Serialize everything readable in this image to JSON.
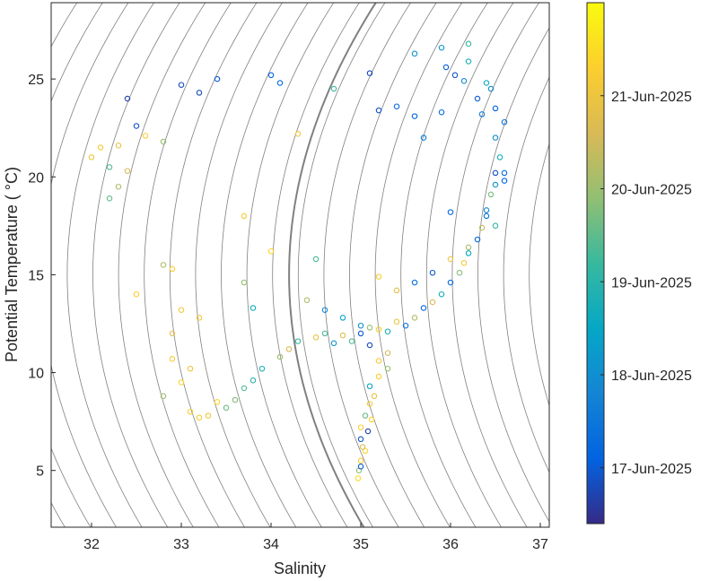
{
  "chart_data": {
    "type": "scatter",
    "xlabel": "Salinity",
    "ylabel": "Potential Temperature ( °C)",
    "xlim": [
      31.55,
      37.1
    ],
    "ylim": [
      2.1,
      28.9
    ],
    "x_ticks": [
      32,
      33,
      34,
      35,
      36,
      37
    ],
    "x_tick_labels": [
      "32",
      "33",
      "34",
      "35",
      "36",
      "37"
    ],
    "y_ticks": [
      5,
      10,
      15,
      20,
      25
    ],
    "y_tick_labels": [
      "5",
      "10",
      "15",
      "20",
      "25"
    ],
    "grid": false,
    "background_contours": "isopycnals (grey, thin)",
    "highlight_contour": "isopycnal (grey, thick)",
    "marker": "open circle",
    "colorbar": {
      "label_dates": [
        "17-Jun-2025",
        "18-Jun-2025",
        "19-Jun-2025",
        "20-Jun-2025",
        "21-Jun-2025"
      ],
      "colormap": "parula",
      "range_days": [
        0,
        5.6
      ]
    },
    "series": [
      {
        "description": "CTD profile points colored by time",
        "points": [
          [
            32.4,
            24.0,
            0.3
          ],
          [
            32.5,
            22.6,
            0.5
          ],
          [
            33.0,
            24.7,
            0.4
          ],
          [
            33.2,
            24.3,
            0.4
          ],
          [
            33.4,
            25.0,
            0.6
          ],
          [
            34.0,
            25.2,
            0.7
          ],
          [
            34.1,
            24.8,
            0.8
          ],
          [
            34.7,
            24.5,
            2.8
          ],
          [
            35.1,
            25.3,
            0.4
          ],
          [
            35.2,
            23.4,
            0.5
          ],
          [
            35.4,
            23.6,
            0.9
          ],
          [
            35.6,
            26.3,
            1.6
          ],
          [
            35.6,
            23.1,
            0.8
          ],
          [
            35.7,
            22.0,
            1.2
          ],
          [
            35.9,
            23.3,
            0.9
          ],
          [
            35.9,
            26.6,
            1.8
          ],
          [
            35.95,
            25.6,
            0.6
          ],
          [
            36.05,
            25.2,
            0.5
          ],
          [
            36.15,
            24.9,
            1.5
          ],
          [
            36.2,
            26.8,
            2.7
          ],
          [
            36.2,
            25.9,
            2.4
          ],
          [
            36.3,
            24.0,
            0.6
          ],
          [
            36.35,
            23.2,
            1.2
          ],
          [
            36.4,
            24.8,
            2.2
          ],
          [
            36.45,
            24.5,
            1.5
          ],
          [
            36.5,
            23.5,
            0.7
          ],
          [
            36.5,
            22.0,
            1.6
          ],
          [
            36.55,
            21.0,
            2.3
          ],
          [
            36.6,
            19.8,
            0.8
          ],
          [
            36.6,
            22.8,
            1.0
          ],
          [
            32.0,
            21.0,
            4.6
          ],
          [
            32.1,
            21.5,
            4.7
          ],
          [
            32.2,
            20.5,
            3.0
          ],
          [
            32.3,
            19.5,
            3.8
          ],
          [
            32.3,
            21.6,
            4.5
          ],
          [
            32.4,
            20.3,
            4.2
          ],
          [
            32.6,
            22.1,
            4.9
          ],
          [
            32.8,
            21.8,
            3.5
          ],
          [
            32.2,
            18.9,
            3.1
          ],
          [
            34.3,
            22.2,
            4.6
          ],
          [
            33.7,
            18.0,
            4.8
          ],
          [
            34.0,
            16.2,
            5.0
          ],
          [
            33.7,
            14.6,
            3.5
          ],
          [
            33.8,
            13.3,
            2.2
          ],
          [
            34.5,
            15.8,
            2.9
          ],
          [
            34.4,
            13.7,
            3.8
          ],
          [
            34.6,
            13.2,
            1.4
          ],
          [
            34.8,
            12.8,
            2.0
          ],
          [
            35.0,
            12.4,
            1.6
          ],
          [
            35.2,
            14.9,
            4.9
          ],
          [
            35.4,
            14.2,
            4.4
          ],
          [
            35.6,
            14.6,
            1.0
          ],
          [
            35.8,
            15.1,
            0.6
          ],
          [
            36.0,
            15.8,
            4.6
          ],
          [
            36.2,
            16.4,
            3.7
          ],
          [
            36.4,
            18.0,
            1.0
          ],
          [
            36.5,
            19.6,
            1.7
          ],
          [
            36.6,
            20.2,
            0.9
          ],
          [
            36.5,
            17.5,
            2.7
          ],
          [
            36.0,
            18.2,
            0.8
          ],
          [
            32.5,
            14.0,
            4.9
          ],
          [
            32.8,
            15.5,
            3.8
          ],
          [
            32.9,
            15.3,
            4.9
          ],
          [
            32.9,
            12.0,
            4.4
          ],
          [
            32.9,
            10.7,
            4.8
          ],
          [
            32.8,
            8.8,
            3.6
          ],
          [
            33.0,
            9.5,
            5.0
          ],
          [
            33.1,
            10.2,
            4.6
          ],
          [
            33.0,
            13.2,
            4.7
          ],
          [
            33.2,
            12.8,
            4.7
          ],
          [
            33.1,
            8.0,
            4.9
          ],
          [
            33.2,
            7.7,
            4.8
          ],
          [
            33.3,
            7.8,
            4.7
          ],
          [
            33.4,
            8.5,
            5.0
          ],
          [
            33.5,
            8.2,
            3.2
          ],
          [
            33.6,
            8.6,
            3.4
          ],
          [
            33.7,
            9.2,
            3.0
          ],
          [
            33.8,
            9.6,
            2.6
          ],
          [
            33.9,
            10.2,
            2.4
          ],
          [
            34.1,
            10.8,
            3.6
          ],
          [
            34.2,
            11.2,
            4.2
          ],
          [
            34.3,
            11.6,
            2.8
          ],
          [
            34.5,
            11.8,
            4.5
          ],
          [
            34.6,
            12.0,
            3.0
          ],
          [
            34.7,
            11.5,
            1.8
          ],
          [
            34.8,
            11.9,
            4.4
          ],
          [
            35.0,
            12.0,
            0.6
          ],
          [
            35.1,
            12.3,
            3.5
          ],
          [
            35.2,
            12.2,
            4.8
          ],
          [
            35.3,
            12.1,
            2.4
          ],
          [
            34.9,
            11.6,
            3.0
          ],
          [
            35.1,
            11.4,
            0.4
          ],
          [
            35.3,
            11.0,
            4.1
          ],
          [
            35.2,
            10.6,
            4.8
          ],
          [
            35.3,
            10.2,
            3.6
          ],
          [
            35.2,
            9.8,
            4.9
          ],
          [
            35.1,
            9.3,
            2.0
          ],
          [
            35.15,
            8.8,
            4.4
          ],
          [
            35.1,
            8.4,
            4.8
          ],
          [
            35.05,
            7.8,
            3.2
          ],
          [
            35.0,
            7.2,
            4.9
          ],
          [
            35.0,
            6.6,
            0.5
          ],
          [
            35.05,
            6.0,
            5.0
          ],
          [
            35.0,
            5.5,
            4.8
          ],
          [
            34.98,
            5.0,
            3.5
          ],
          [
            34.97,
            4.6,
            5.1
          ],
          [
            35.0,
            5.2,
            0.6
          ],
          [
            35.02,
            6.2,
            4.3
          ],
          [
            35.08,
            7.0,
            0.3
          ],
          [
            35.12,
            7.6,
            4.9
          ],
          [
            35.4,
            12.6,
            4.6
          ],
          [
            35.5,
            12.4,
            1.0
          ],
          [
            35.6,
            12.8,
            3.8
          ],
          [
            35.7,
            13.3,
            0.7
          ],
          [
            35.8,
            13.6,
            4.2
          ],
          [
            35.9,
            14.0,
            2.3
          ],
          [
            36.0,
            14.6,
            0.9
          ],
          [
            36.1,
            15.1,
            3.4
          ],
          [
            36.15,
            15.6,
            4.7
          ],
          [
            36.2,
            16.1,
            2.1
          ],
          [
            36.3,
            16.8,
            0.8
          ],
          [
            36.35,
            17.4,
            4.0
          ],
          [
            36.4,
            18.3,
            1.5
          ],
          [
            36.45,
            19.1,
            3.3
          ],
          [
            36.5,
            20.2,
            0.5
          ]
        ]
      }
    ]
  }
}
